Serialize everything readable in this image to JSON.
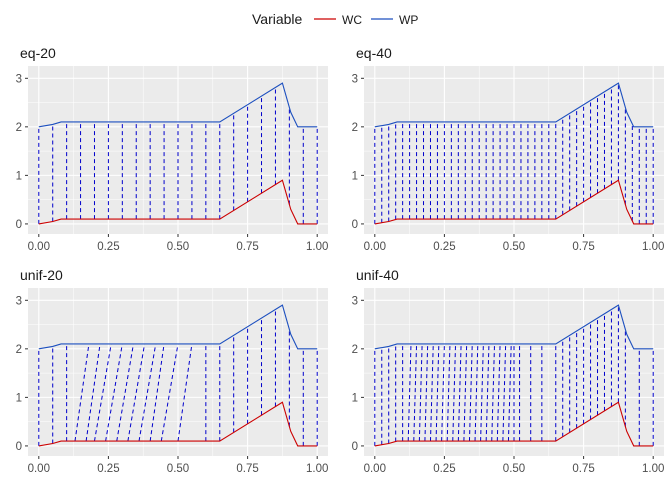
{
  "legend": {
    "title": "Variable",
    "entries": [
      {
        "label": "WC",
        "color": "#cc0000"
      },
      {
        "label": "WP",
        "color": "#1c4fbf"
      }
    ]
  },
  "connector_color": "#0000cc",
  "panel_bg": "#ebebeb",
  "chart_data": [
    {
      "type": "line",
      "panel_title": "eq-20",
      "xlim": [
        0,
        1
      ],
      "ylim": [
        0,
        3
      ],
      "x_ticks": [
        "0.00",
        "0.25",
        "0.50",
        "0.75",
        "1.00"
      ],
      "y_ticks": [
        "0",
        "1",
        "2",
        "3"
      ],
      "grid": true,
      "series": [
        {
          "name": "WC",
          "x": [
            0,
            0.05,
            0.08,
            0.65,
            0.875,
            0.905,
            0.93,
            1.0
          ],
          "y": [
            0,
            0.05,
            0.1,
            0.1,
            0.9,
            0.3,
            0,
            0
          ]
        },
        {
          "name": "WP",
          "x": [
            0,
            0.05,
            0.08,
            0.65,
            0.875,
            0.905,
            0.93,
            1.0
          ],
          "y": [
            2,
            2.05,
            2.1,
            2.1,
            2.9,
            2.3,
            2.0,
            2.0
          ]
        }
      ],
      "connectors": {
        "lower_x": [
          0,
          0.05,
          0.1,
          0.15,
          0.2,
          0.25,
          0.3,
          0.35,
          0.4,
          0.45,
          0.5,
          0.55,
          0.6,
          0.65,
          0.7,
          0.75,
          0.8,
          0.85,
          0.9,
          0.95,
          1.0
        ],
        "upper_x": [
          0,
          0.05,
          0.1,
          0.15,
          0.2,
          0.25,
          0.3,
          0.35,
          0.4,
          0.45,
          0.5,
          0.55,
          0.6,
          0.65,
          0.7,
          0.75,
          0.8,
          0.85,
          0.9,
          0.95,
          1.0
        ]
      }
    },
    {
      "type": "line",
      "panel_title": "eq-40",
      "xlim": [
        0,
        1
      ],
      "ylim": [
        0,
        3
      ],
      "x_ticks": [
        "0.00",
        "0.25",
        "0.50",
        "0.75",
        "1.00"
      ],
      "y_ticks": [
        "0",
        "1",
        "2",
        "3"
      ],
      "grid": true,
      "series": [
        {
          "name": "WC",
          "x": [
            0,
            0.05,
            0.08,
            0.65,
            0.875,
            0.905,
            0.93,
            1.0
          ],
          "y": [
            0,
            0.05,
            0.1,
            0.1,
            0.9,
            0.3,
            0,
            0
          ]
        },
        {
          "name": "WP",
          "x": [
            0,
            0.05,
            0.08,
            0.65,
            0.875,
            0.905,
            0.93,
            1.0
          ],
          "y": [
            2,
            2.05,
            2.1,
            2.1,
            2.9,
            2.3,
            2.0,
            2.0
          ]
        }
      ],
      "connectors": {
        "lower_x": [
          0,
          0.025,
          0.05,
          0.075,
          0.1,
          0.125,
          0.15,
          0.175,
          0.2,
          0.225,
          0.25,
          0.275,
          0.3,
          0.325,
          0.35,
          0.375,
          0.4,
          0.425,
          0.45,
          0.475,
          0.5,
          0.525,
          0.55,
          0.575,
          0.6,
          0.625,
          0.65,
          0.675,
          0.7,
          0.725,
          0.75,
          0.775,
          0.8,
          0.825,
          0.85,
          0.875,
          0.9,
          0.925,
          0.95,
          0.975,
          1.0
        ],
        "upper_x": [
          0,
          0.025,
          0.05,
          0.075,
          0.1,
          0.125,
          0.15,
          0.175,
          0.2,
          0.225,
          0.25,
          0.275,
          0.3,
          0.325,
          0.35,
          0.375,
          0.4,
          0.425,
          0.45,
          0.475,
          0.5,
          0.525,
          0.55,
          0.575,
          0.6,
          0.625,
          0.65,
          0.675,
          0.7,
          0.725,
          0.75,
          0.775,
          0.8,
          0.825,
          0.85,
          0.875,
          0.9,
          0.925,
          0.95,
          0.975,
          1.0
        ]
      }
    },
    {
      "type": "line",
      "panel_title": "unif-20",
      "xlim": [
        0,
        1
      ],
      "ylim": [
        0,
        3
      ],
      "x_ticks": [
        "0.00",
        "0.25",
        "0.50",
        "0.75",
        "1.00"
      ],
      "y_ticks": [
        "0",
        "1",
        "2",
        "3"
      ],
      "grid": true,
      "series": [
        {
          "name": "WC",
          "x": [
            0,
            0.05,
            0.08,
            0.65,
            0.875,
            0.905,
            0.93,
            1.0
          ],
          "y": [
            0,
            0.05,
            0.1,
            0.1,
            0.9,
            0.3,
            0,
            0
          ]
        },
        {
          "name": "WP",
          "x": [
            0,
            0.05,
            0.08,
            0.65,
            0.875,
            0.905,
            0.93,
            1.0
          ],
          "y": [
            2,
            2.05,
            2.1,
            2.1,
            2.9,
            2.3,
            2.0,
            2.0
          ]
        }
      ],
      "connectors": {
        "lower_x": [
          0,
          0.05,
          0.1,
          0.13,
          0.17,
          0.2,
          0.24,
          0.28,
          0.32,
          0.36,
          0.4,
          0.44,
          0.5,
          0.6,
          0.65,
          0.7,
          0.75,
          0.8,
          0.85,
          0.9,
          0.95,
          1.0
        ],
        "upper_x": [
          0,
          0.05,
          0.1,
          0.18,
          0.22,
          0.26,
          0.3,
          0.34,
          0.38,
          0.42,
          0.45,
          0.5,
          0.55,
          0.6,
          0.65,
          0.7,
          0.75,
          0.8,
          0.85,
          0.9,
          0.95,
          1.0
        ]
      }
    },
    {
      "type": "line",
      "panel_title": "unif-40",
      "xlim": [
        0,
        1
      ],
      "ylim": [
        0,
        3
      ],
      "x_ticks": [
        "0.00",
        "0.25",
        "0.50",
        "0.75",
        "1.00"
      ],
      "y_ticks": [
        "0",
        "1",
        "2",
        "3"
      ],
      "grid": true,
      "series": [
        {
          "name": "WC",
          "x": [
            0,
            0.05,
            0.08,
            0.65,
            0.875,
            0.905,
            0.93,
            1.0
          ],
          "y": [
            0,
            0.05,
            0.1,
            0.1,
            0.9,
            0.3,
            0,
            0
          ]
        },
        {
          "name": "WP",
          "x": [
            0,
            0.05,
            0.08,
            0.65,
            0.875,
            0.905,
            0.93,
            1.0
          ],
          "y": [
            2,
            2.05,
            2.1,
            2.1,
            2.9,
            2.3,
            2.0,
            2.0
          ]
        }
      ],
      "connectors": {
        "lower_x": [
          0,
          0.025,
          0.05,
          0.075,
          0.1,
          0.12,
          0.14,
          0.16,
          0.18,
          0.2,
          0.22,
          0.24,
          0.26,
          0.28,
          0.3,
          0.32,
          0.34,
          0.36,
          0.38,
          0.4,
          0.42,
          0.44,
          0.46,
          0.48,
          0.5,
          0.52,
          0.56,
          0.6,
          0.65,
          0.675,
          0.7,
          0.725,
          0.75,
          0.775,
          0.8,
          0.825,
          0.85,
          0.875,
          0.9,
          0.95,
          1.0
        ],
        "upper_x": [
          0,
          0.025,
          0.05,
          0.075,
          0.1,
          0.13,
          0.15,
          0.17,
          0.19,
          0.21,
          0.23,
          0.25,
          0.27,
          0.29,
          0.31,
          0.33,
          0.35,
          0.37,
          0.39,
          0.41,
          0.43,
          0.45,
          0.47,
          0.49,
          0.5,
          0.52,
          0.56,
          0.6,
          0.65,
          0.675,
          0.7,
          0.725,
          0.75,
          0.775,
          0.8,
          0.825,
          0.85,
          0.875,
          0.9,
          0.95,
          1.0
        ]
      }
    }
  ]
}
